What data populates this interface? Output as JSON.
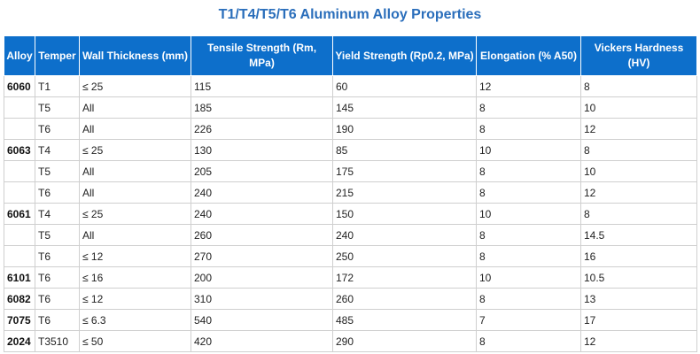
{
  "title": "T1/T4/T5/T6 Aluminum Alloy Properties",
  "headers": {
    "alloy": "Alloy",
    "temper": "Temper",
    "wall": "Wall Thickness (mm)",
    "tensile": "Tensile Strength (Rm, MPa)",
    "yield": "Yield Strength (Rp0.2, MPa)",
    "elongation": "Elongation (% A50)",
    "hardness": "Vickers Hardness (HV)"
  },
  "rows": [
    {
      "alloy": "6060",
      "temper": "T1",
      "wall": "≤ 25",
      "tensile": "115",
      "yield": "60",
      "elongation": "12",
      "hardness": "8"
    },
    {
      "alloy": "",
      "temper": "T5",
      "wall": "All",
      "tensile": "185",
      "yield": "145",
      "elongation": "8",
      "hardness": "10"
    },
    {
      "alloy": "",
      "temper": "T6",
      "wall": "All",
      "tensile": "226",
      "yield": "190",
      "elongation": "8",
      "hardness": "12"
    },
    {
      "alloy": "6063",
      "temper": "T4",
      "wall": "≤ 25",
      "tensile": "130",
      "yield": "85",
      "elongation": "10",
      "hardness": "8"
    },
    {
      "alloy": "",
      "temper": "T5",
      "wall": "All",
      "tensile": "205",
      "yield": "175",
      "elongation": "8",
      "hardness": "10"
    },
    {
      "alloy": "",
      "temper": "T6",
      "wall": "All",
      "tensile": "240",
      "yield": "215",
      "elongation": "8",
      "hardness": "12"
    },
    {
      "alloy": "6061",
      "temper": "T4",
      "wall": "≤ 25",
      "tensile": "240",
      "yield": "150",
      "elongation": "10",
      "hardness": "8"
    },
    {
      "alloy": "",
      "temper": "T5",
      "wall": "All",
      "tensile": "260",
      "yield": "240",
      "elongation": "8",
      "hardness": "14.5"
    },
    {
      "alloy": "",
      "temper": "T6",
      "wall": "≤ 12",
      "tensile": "270",
      "yield": "250",
      "elongation": "8",
      "hardness": "16"
    },
    {
      "alloy": "6101",
      "temper": "T6",
      "wall": "≤ 16",
      "tensile": "200",
      "yield": "172",
      "elongation": "10",
      "hardness": "10.5"
    },
    {
      "alloy": "6082",
      "temper": "T6",
      "wall": "≤ 12",
      "tensile": "310",
      "yield": "260",
      "elongation": "8",
      "hardness": "13"
    },
    {
      "alloy": "7075",
      "temper": "T6",
      "wall": "≤ 6.3",
      "tensile": "540",
      "yield": "485",
      "elongation": "7",
      "hardness": "17"
    },
    {
      "alloy": "2024",
      "temper": "T3510",
      "wall": "≤ 50",
      "tensile": "420",
      "yield": "290",
      "elongation": "8",
      "hardness": "12"
    }
  ]
}
